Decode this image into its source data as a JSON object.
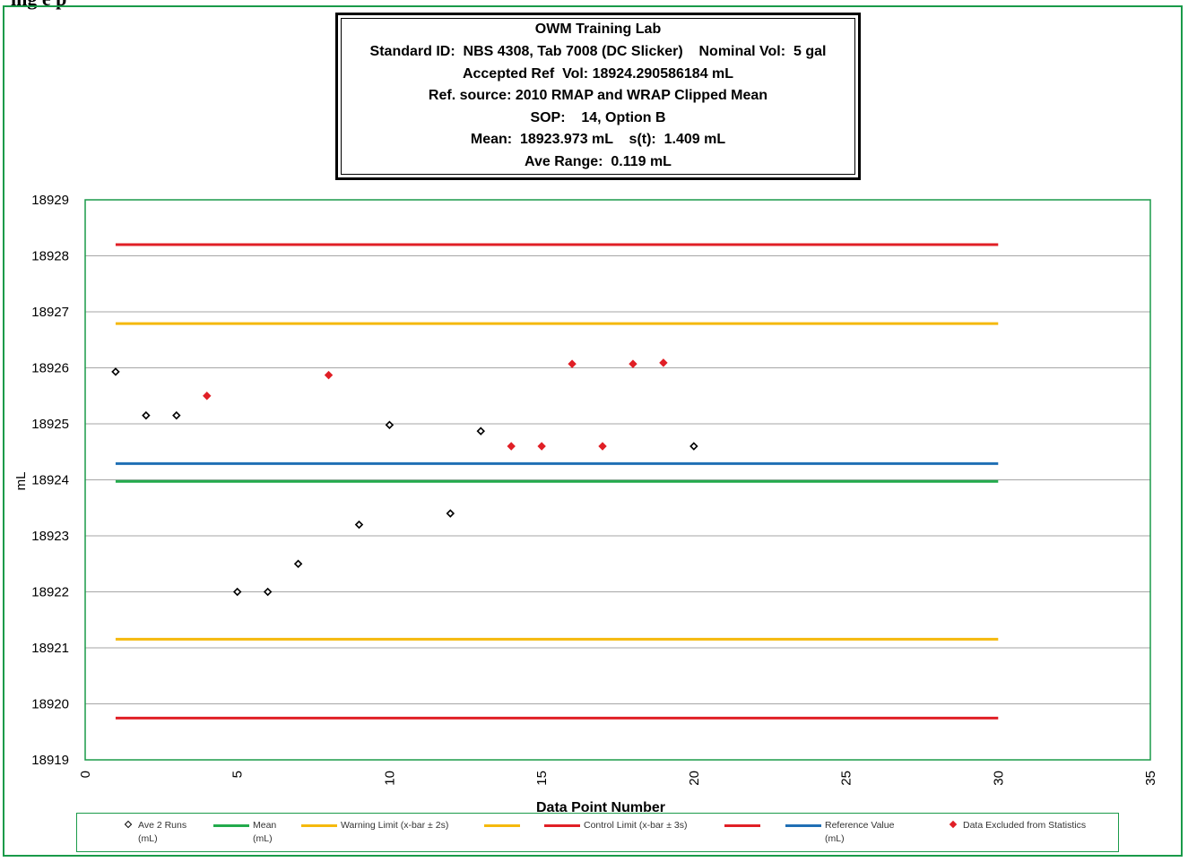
{
  "page_heading": "ing e   p",
  "info_box": {
    "lines": [
      "OWM Training Lab",
      "Standard ID:  NBS 4308, Tab 7008 (DC Slicker)    Nominal Vol:  5 gal",
      "Accepted Ref  Vol: 18924.290586184 mL",
      "Ref. source: 2010 RMAP and WRAP Clipped Mean",
      "SOP:    14, Option B",
      "Mean:  18923.973 mL    s(t):  1.409 mL",
      "Ave Range:  0.119 mL"
    ]
  },
  "colors": {
    "frame": "#1a9a49",
    "mean": "#22aa4c",
    "warning": "#f5b90c",
    "control": "#e01f26",
    "reference": "#1f6fb4",
    "excluded": "#e01f26",
    "included": "#000000",
    "gridline": "#a6a6a6"
  },
  "chart_data": {
    "type": "scatter",
    "title": "",
    "xlabel": "Data Point Number",
    "ylabel": "mL",
    "xlim": [
      0,
      35
    ],
    "ylim": [
      18919,
      18929
    ],
    "x_ticks": [
      "0",
      "5",
      "10",
      "15",
      "20",
      "25",
      "30",
      "35"
    ],
    "y_ticks": [
      "18919",
      "18920",
      "18921",
      "18922",
      "18923",
      "18924",
      "18925",
      "18926",
      "18927",
      "18928",
      "18929"
    ],
    "grid": "horizontal",
    "series": [
      {
        "name": "Ave 2 Runs (mL)",
        "kind": "points",
        "marker": "hollow-diamond",
        "points": [
          [
            1,
            18925.93
          ],
          [
            2,
            18925.15
          ],
          [
            3,
            18925.15
          ],
          [
            5,
            18922.0
          ],
          [
            6,
            18922.0
          ],
          [
            7,
            18922.5
          ],
          [
            9,
            18923.2
          ],
          [
            10,
            18924.98
          ],
          [
            12,
            18923.4
          ],
          [
            13,
            18924.87
          ],
          [
            20,
            18924.6
          ]
        ]
      },
      {
        "name": "Mean (mL)",
        "kind": "hline",
        "y": 18923.973,
        "x_range": [
          1,
          30
        ]
      },
      {
        "name": "Warning Limit (x-bar ± 2s)",
        "kind": "hline",
        "y": 18926.791,
        "x_range": [
          1,
          30
        ]
      },
      {
        "name": "",
        "kind": "hline",
        "y": 18921.155,
        "x_range": [
          1,
          30
        ]
      },
      {
        "name": "Control Limit (x-bar ± 3s)",
        "kind": "hline",
        "y": 18928.2,
        "x_range": [
          1,
          30
        ]
      },
      {
        "name": "",
        "kind": "hline",
        "y": 18919.746,
        "x_range": [
          1,
          30
        ]
      },
      {
        "name": "Reference Value (mL)",
        "kind": "hline",
        "y": 18924.291,
        "x_range": [
          1,
          30
        ]
      },
      {
        "name": "Data Excluded from Statistics",
        "kind": "points",
        "marker": "filled-diamond",
        "points": [
          [
            4,
            18925.5
          ],
          [
            8,
            18925.87
          ],
          [
            14,
            18924.6
          ],
          [
            15,
            18924.6
          ],
          [
            16,
            18926.07
          ],
          [
            17,
            18924.6
          ],
          [
            18,
            18926.07
          ],
          [
            19,
            18926.09
          ]
        ]
      }
    ],
    "legend": {
      "placement": "bottom",
      "entries": [
        {
          "label": "Ave 2 Runs\n(mL)",
          "symbol": "hollow-diamond",
          "color": "#000000"
        },
        {
          "label": "Mean\n(mL)",
          "symbol": "line",
          "color": "#22aa4c"
        },
        {
          "label": "Warning Limit (x-bar ± 2s)",
          "symbol": "line",
          "color": "#f5b90c"
        },
        {
          "label": "",
          "symbol": "line",
          "color": "#f5b90c"
        },
        {
          "label": "Control Limit (x-bar ± 3s)",
          "symbol": "line",
          "color": "#e01f26"
        },
        {
          "label": "",
          "symbol": "line",
          "color": "#e01f26"
        },
        {
          "label": "Reference Value\n(mL)",
          "symbol": "line",
          "color": "#1f6fb4"
        },
        {
          "label": "Data Excluded from Statistics",
          "symbol": "filled-diamond",
          "color": "#e01f26"
        }
      ]
    }
  }
}
